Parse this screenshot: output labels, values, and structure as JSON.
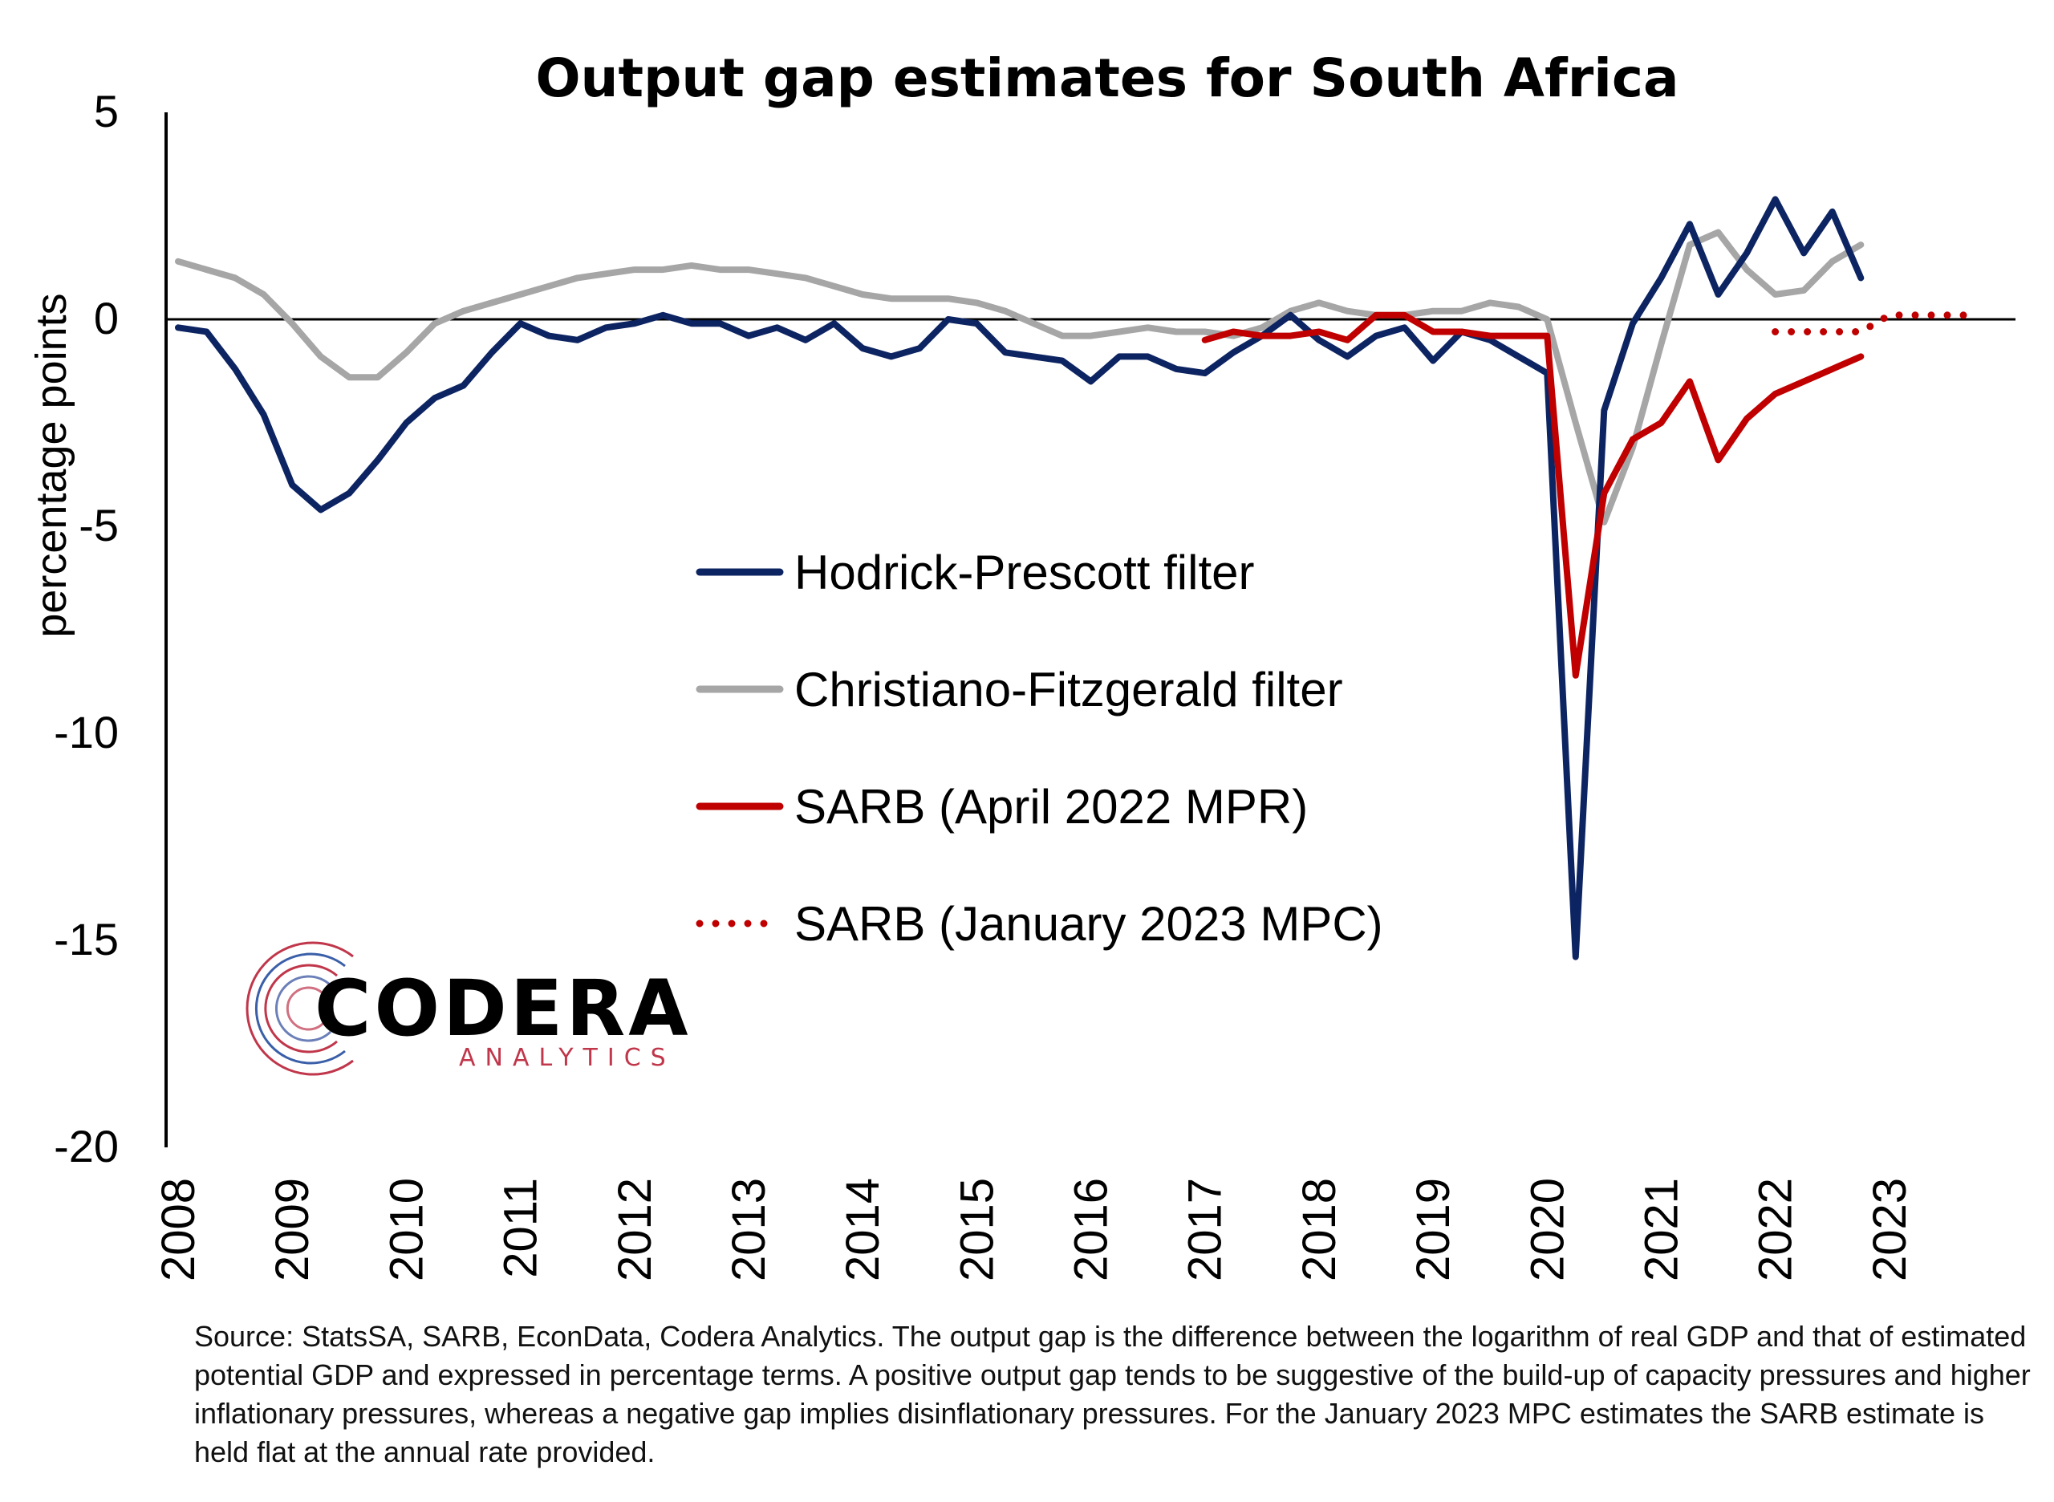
{
  "chart_data": {
    "type": "line",
    "title": "Output gap estimates for South Africa",
    "ylabel": "percentage points",
    "xlabel": "",
    "ylim": [
      -20,
      5
    ],
    "yticks": [
      5,
      0,
      -5,
      -10,
      -15,
      -20
    ],
    "xlim": [
      2008,
      2024
    ],
    "xticks": [
      "2008",
      "2009",
      "2010",
      "2011",
      "2012",
      "2013",
      "2014",
      "2015",
      "2016",
      "2017",
      "2018",
      "2019",
      "2020",
      "2021",
      "2022",
      "2023"
    ],
    "legend_position": "center",
    "zero_line": true,
    "series": [
      {
        "name": "Hodrick-Prescott filter",
        "color": "#0d2462",
        "style": "solid",
        "x": [
          2008.0,
          2008.25,
          2008.5,
          2008.75,
          2009.0,
          2009.25,
          2009.5,
          2009.75,
          2010.0,
          2010.25,
          2010.5,
          2010.75,
          2011.0,
          2011.25,
          2011.5,
          2011.75,
          2012.0,
          2012.25,
          2012.5,
          2012.75,
          2013.0,
          2013.25,
          2013.5,
          2013.75,
          2014.0,
          2014.25,
          2014.5,
          2014.75,
          2015.0,
          2015.25,
          2015.5,
          2015.75,
          2016.0,
          2016.25,
          2016.5,
          2016.75,
          2017.0,
          2017.25,
          2017.5,
          2017.75,
          2018.0,
          2018.25,
          2018.5,
          2018.75,
          2019.0,
          2019.25,
          2019.5,
          2019.75,
          2020.0,
          2020.25,
          2020.5,
          2020.75,
          2021.0,
          2021.25,
          2021.5,
          2021.75,
          2022.0,
          2022.25,
          2022.5,
          2022.75
        ],
        "values": [
          -0.2,
          -0.3,
          -1.2,
          -2.3,
          -4.0,
          -4.6,
          -4.2,
          -3.4,
          -2.5,
          -1.9,
          -1.6,
          -0.8,
          -0.1,
          -0.4,
          -0.5,
          -0.2,
          -0.1,
          0.1,
          -0.1,
          -0.1,
          -0.4,
          -0.2,
          -0.5,
          -0.1,
          -0.7,
          -0.9,
          -0.7,
          0.0,
          -0.1,
          -0.8,
          -0.9,
          -1.0,
          -1.5,
          -0.9,
          -0.9,
          -1.2,
          -1.3,
          -0.8,
          -0.4,
          0.1,
          -0.5,
          -0.9,
          -0.4,
          -0.2,
          -1.0,
          -0.3,
          -0.5,
          -0.9,
          -1.3,
          -15.4,
          -2.2,
          -0.1,
          1.0,
          2.3,
          0.6,
          1.6,
          2.9,
          1.6,
          2.6,
          1.0
        ]
      },
      {
        "name": "Christiano-Fitzgerald filter",
        "color": "#a6a6a6",
        "style": "solid",
        "x": [
          2008.0,
          2008.25,
          2008.5,
          2008.75,
          2009.0,
          2009.25,
          2009.5,
          2009.75,
          2010.0,
          2010.25,
          2010.5,
          2010.75,
          2011.0,
          2011.25,
          2011.5,
          2011.75,
          2012.0,
          2012.25,
          2012.5,
          2012.75,
          2013.0,
          2013.25,
          2013.5,
          2013.75,
          2014.0,
          2014.25,
          2014.5,
          2014.75,
          2015.0,
          2015.25,
          2015.5,
          2015.75,
          2016.0,
          2016.25,
          2016.5,
          2016.75,
          2017.0,
          2017.25,
          2017.5,
          2017.75,
          2018.0,
          2018.25,
          2018.5,
          2018.75,
          2019.0,
          2019.25,
          2019.5,
          2019.75,
          2020.0,
          2020.25,
          2020.5,
          2020.75,
          2021.0,
          2021.25,
          2021.5,
          2021.75,
          2022.0,
          2022.25,
          2022.5,
          2022.75
        ],
        "values": [
          1.4,
          1.2,
          1.0,
          0.6,
          -0.1,
          -0.9,
          -1.4,
          -1.4,
          -0.8,
          -0.1,
          0.2,
          0.4,
          0.6,
          0.8,
          1.0,
          1.1,
          1.2,
          1.2,
          1.3,
          1.2,
          1.2,
          1.1,
          1.0,
          0.8,
          0.6,
          0.5,
          0.5,
          0.5,
          0.4,
          0.2,
          -0.1,
          -0.4,
          -0.4,
          -0.3,
          -0.2,
          -0.3,
          -0.3,
          -0.4,
          -0.2,
          0.2,
          0.4,
          0.2,
          0.1,
          0.1,
          0.2,
          0.2,
          0.4,
          0.3,
          0.0,
          -2.5,
          -4.9,
          -3.1,
          -0.6,
          1.8,
          2.1,
          1.2,
          0.6,
          0.7,
          1.4,
          1.8
        ]
      },
      {
        "name": "SARB (April 2022 MPR)",
        "color": "#c00000",
        "style": "solid",
        "x": [
          2017.0,
          2017.25,
          2017.5,
          2017.75,
          2018.0,
          2018.25,
          2018.5,
          2018.75,
          2019.0,
          2019.25,
          2019.5,
          2019.75,
          2020.0,
          2020.25,
          2020.5,
          2020.75,
          2021.0,
          2021.25,
          2021.5,
          2021.75,
          2022.0,
          2022.25,
          2022.5,
          2022.75
        ],
        "values": [
          -0.5,
          -0.3,
          -0.4,
          -0.4,
          -0.3,
          -0.5,
          0.1,
          0.1,
          -0.3,
          -0.3,
          -0.4,
          -0.4,
          -0.4,
          -8.6,
          -4.2,
          -2.9,
          -2.5,
          -1.5,
          -3.4,
          -2.4,
          -1.8,
          -1.5,
          -1.2,
          -0.9
        ]
      },
      {
        "name": "SARB (January 2023 MPC)",
        "color": "#c00000",
        "style": "dotted",
        "x": [
          2022.0,
          2022.25,
          2022.5,
          2022.75,
          2023.0,
          2023.25,
          2023.5,
          2023.75
        ],
        "values": [
          -0.3,
          -0.3,
          -0.3,
          -0.3,
          0.1,
          0.1,
          0.1,
          0.1
        ]
      }
    ]
  },
  "logo": {
    "name": "CODERA",
    "tagline": "ANALYTICS"
  },
  "source_note": "Source: StatsSA, SARB, EconData, Codera Analytics. The output gap is the difference between the logarithm of real GDP and that of estimated potential GDP and expressed in percentage terms. A positive output gap tends to be suggestive of the build-up of capacity pressures and higher inflationary pressures, whereas a negative gap implies disinflationary pressures. For the January 2023 MPC estimates the SARB estimate is held flat at the annual rate provided."
}
